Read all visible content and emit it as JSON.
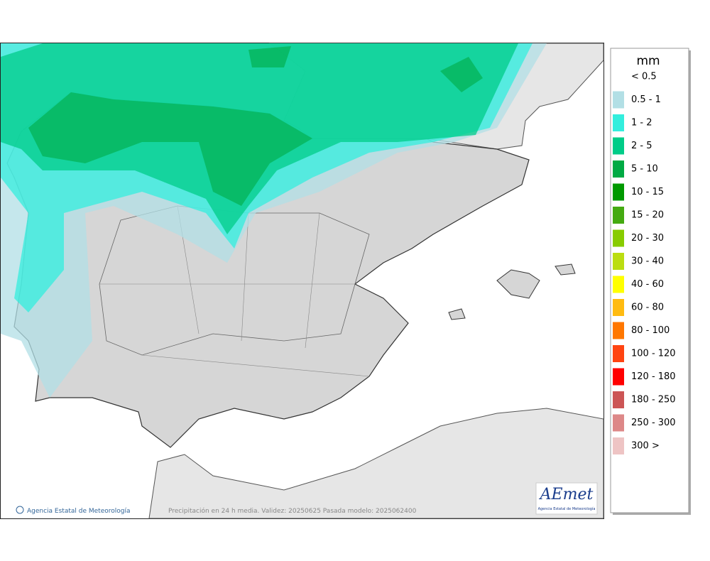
{
  "legend": {
    "title": "mm",
    "items": [
      {
        "label": "< 0.5",
        "color": "#ffffff"
      },
      {
        "label": "0.5 - 1",
        "color": "#b2dfe5"
      },
      {
        "label": "1 - 2",
        "color": "#33eedd"
      },
      {
        "label": "2 - 5",
        "color": "#00cc88"
      },
      {
        "label": "5 - 10",
        "color": "#00aa44"
      },
      {
        "label": "10 - 15",
        "color": "#009900"
      },
      {
        "label": "15 - 20",
        "color": "#44aa11"
      },
      {
        "label": "20 - 30",
        "color": "#88cc00"
      },
      {
        "label": "30 - 40",
        "color": "#bbdd11"
      },
      {
        "label": "40 - 60",
        "color": "#ffff00"
      },
      {
        "label": "60 - 80",
        "color": "#ffbb11"
      },
      {
        "label": "80 - 100",
        "color": "#ff7700"
      },
      {
        "label": "100 - 120",
        "color": "#ff4411"
      },
      {
        "label": "120 - 180",
        "color": "#ff0000"
      },
      {
        "label": "180 - 250",
        "color": "#cc5555"
      },
      {
        "label": "250 - 300",
        "color": "#dd8888"
      },
      {
        "label": "300 >",
        "color": "#eec4c4"
      }
    ]
  },
  "footer": {
    "credit": "Agencia Estatal de Meteorología",
    "caption": "Precipitación en 24 h media. Validez: 20250625 Pasada modelo: 2025062400"
  },
  "logo": {
    "name": "AEmet",
    "subtitle": "Agencia Estatal de Meteorología"
  }
}
